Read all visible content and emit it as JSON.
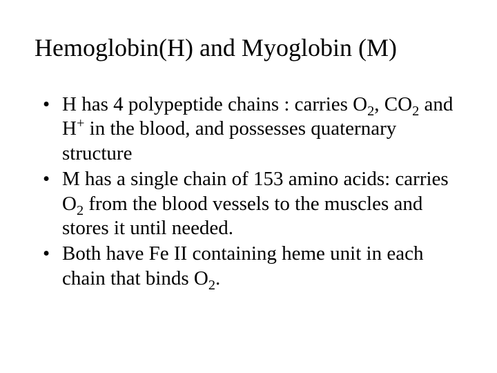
{
  "background_color": "#ffffff",
  "text_color": "#000000",
  "font_family": "Times New Roman",
  "title": {
    "text": "Hemoglobin(H)  and Myoglobin (M)",
    "fontsize": 36,
    "weight": "normal",
    "align": "left"
  },
  "bullets": {
    "fontsize": 29,
    "line_height": 1.22,
    "marker": "•",
    "items": [
      {
        "html": "H has 4 polypeptide chains : carries O<sub>2</sub>, CO<sub>2</sub> and H<sup>+</sup> in the blood, and possesses quaternary structure"
      },
      {
        "html": "M has a single chain of 153  amino acids: carries O<sub>2</sub> from the blood vessels to the muscles and stores it until needed."
      },
      {
        "html": "Both have Fe II containing heme unit in each chain that binds O<sub>2</sub>."
      }
    ]
  }
}
